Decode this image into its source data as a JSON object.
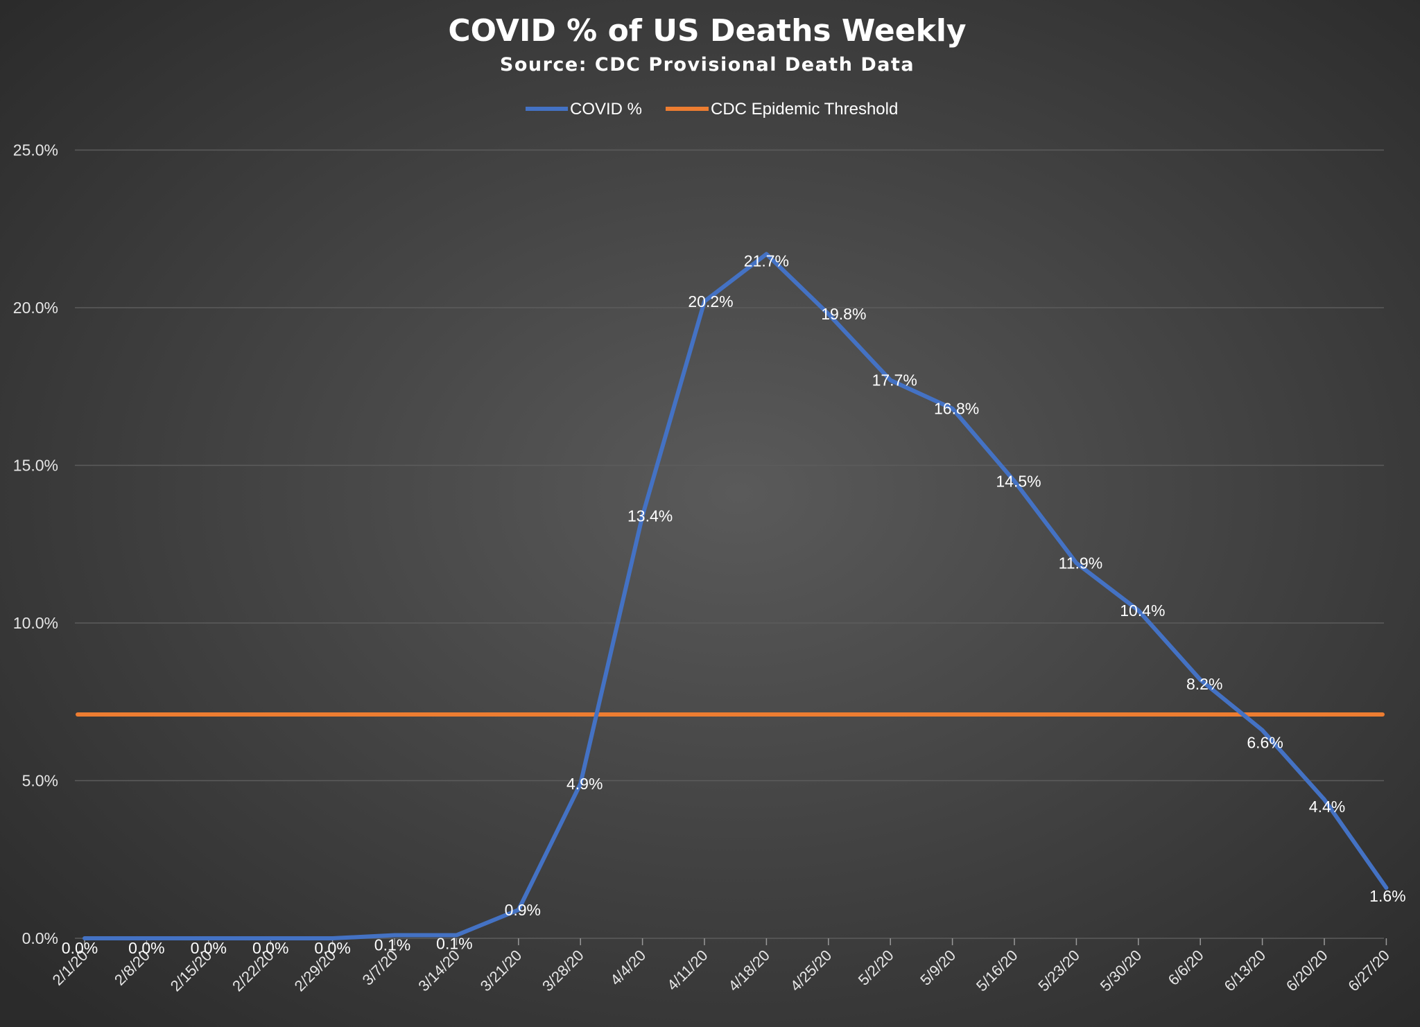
{
  "chart_data": {
    "type": "line",
    "title": "COVID % of US Deaths Weekly",
    "subtitle": "Source: CDC Provisional Death Data",
    "xlabel": "",
    "ylabel": "",
    "ylim": [
      0,
      25
    ],
    "y_ticks": [
      "0.0%",
      "5.0%",
      "10.0%",
      "15.0%",
      "20.0%",
      "25.0%"
    ],
    "y_tick_values": [
      0,
      5,
      10,
      15,
      20,
      25
    ],
    "grid": true,
    "legend_position": "top",
    "categories": [
      "2/1/20",
      "2/8/20",
      "2/15/20",
      "2/22/20",
      "2/29/20",
      "3/7/20",
      "3/14/20",
      "3/21/20",
      "3/28/20",
      "4/4/20",
      "4/11/20",
      "4/18/20",
      "4/25/20",
      "5/2/20",
      "5/9/20",
      "5/16/20",
      "5/23/20",
      "5/30/20",
      "6/6/20",
      "6/13/20",
      "6/20/20",
      "6/27/20"
    ],
    "series": [
      {
        "name": "COVID %",
        "color": "#4472c4",
        "values": [
          0.0,
          0.0,
          0.0,
          0.0,
          0.0,
          0.1,
          0.1,
          0.9,
          4.9,
          13.4,
          20.2,
          21.7,
          19.8,
          17.7,
          16.8,
          14.5,
          11.9,
          10.4,
          8.2,
          6.6,
          4.4,
          1.6
        ],
        "labels": [
          "0.0%",
          "0.0%",
          "0.0%",
          "0.0%",
          "0.0%",
          "0.1%",
          "0.1%",
          "0.9%",
          "4.9%",
          "13.4%",
          "20.2%",
          "21.7%",
          "19.8%",
          "17.7%",
          "16.8%",
          "14.5%",
          "11.9%",
          "10.4%",
          "8.2%",
          "6.6%",
          "4.4%",
          "1.6%"
        ]
      },
      {
        "name": "CDC Epidemic Threshold",
        "color": "#ed7d31",
        "values": [
          7.1,
          7.1,
          7.1,
          7.1,
          7.1,
          7.1,
          7.1,
          7.1,
          7.1,
          7.1,
          7.1,
          7.1,
          7.1,
          7.1,
          7.1,
          7.1,
          7.1,
          7.1,
          7.1,
          7.1,
          7.1,
          7.1
        ]
      }
    ]
  },
  "colors": {
    "background": "#2b2b2b",
    "background_center": "#5a5a5a",
    "gridline": "#5c5c5c",
    "text": "#ffffff"
  }
}
